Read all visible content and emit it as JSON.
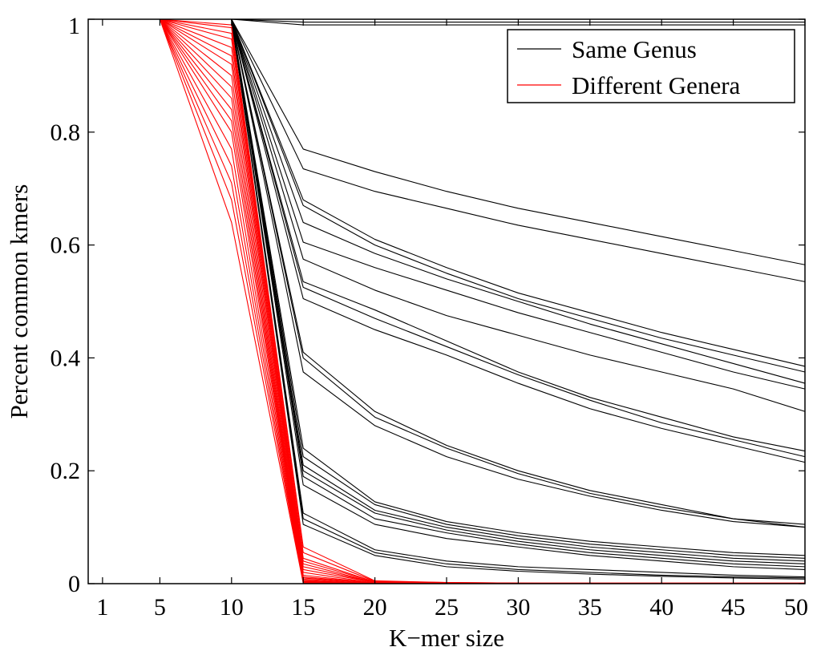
{
  "chart_data": {
    "type": "line",
    "title": "",
    "xlabel": "K−mer size",
    "ylabel": "Percent common kmers",
    "x": [
      1,
      5,
      10,
      15,
      20,
      25,
      30,
      35,
      40,
      45,
      50
    ],
    "xticks": [
      "1",
      "5",
      "10",
      "15",
      "20",
      "25",
      "30",
      "35",
      "40",
      "45",
      "50"
    ],
    "yticks": [
      "0",
      "0.2",
      "0.4",
      "0.6",
      "0.8",
      "1"
    ],
    "xlim": [
      0,
      50
    ],
    "ylim": [
      0,
      1
    ],
    "grid": false,
    "legend_position": "top-right",
    "series": [
      {
        "name": "Same Genus",
        "color": "#000000",
        "lines": [
          [
            1,
            1,
            1,
            0.995,
            0.995,
            0.995,
            0.995,
            0.995,
            0.995,
            0.995,
            0.995
          ],
          [
            1,
            1,
            1,
            0.99,
            0.99,
            0.99,
            0.99,
            0.99,
            0.99,
            0.99,
            0.99
          ],
          [
            1,
            1,
            1,
            0.77,
            0.73,
            0.695,
            0.665,
            0.64,
            0.615,
            0.59,
            0.565
          ],
          [
            1,
            1,
            1,
            0.735,
            0.695,
            0.665,
            0.635,
            0.61,
            0.585,
            0.56,
            0.535
          ],
          [
            1,
            1,
            1,
            0.68,
            0.61,
            0.56,
            0.515,
            0.48,
            0.445,
            0.415,
            0.385
          ],
          [
            1,
            1,
            1,
            0.67,
            0.6,
            0.55,
            0.505,
            0.47,
            0.435,
            0.405,
            0.375
          ],
          [
            1,
            1,
            1,
            0.64,
            0.585,
            0.54,
            0.5,
            0.46,
            0.425,
            0.39,
            0.355
          ],
          [
            1,
            1,
            1,
            0.605,
            0.56,
            0.52,
            0.48,
            0.445,
            0.41,
            0.375,
            0.345
          ],
          [
            1,
            1,
            1,
            0.575,
            0.52,
            0.475,
            0.44,
            0.405,
            0.375,
            0.345,
            0.305
          ],
          [
            1,
            1,
            1,
            0.535,
            0.485,
            0.43,
            0.375,
            0.33,
            0.295,
            0.26,
            0.235
          ],
          [
            1,
            1,
            1,
            0.525,
            0.47,
            0.42,
            0.37,
            0.325,
            0.285,
            0.255,
            0.225
          ],
          [
            1,
            1,
            1,
            0.505,
            0.45,
            0.405,
            0.355,
            0.31,
            0.275,
            0.245,
            0.215
          ],
          [
            1,
            1,
            1,
            0.41,
            0.305,
            0.245,
            0.2,
            0.165,
            0.14,
            0.115,
            0.105
          ],
          [
            1,
            1,
            1,
            0.4,
            0.295,
            0.24,
            0.195,
            0.16,
            0.135,
            0.115,
            0.1
          ],
          [
            1,
            1,
            1,
            0.375,
            0.28,
            0.225,
            0.185,
            0.155,
            0.13,
            0.11,
            0.1
          ],
          [
            1,
            1,
            1,
            0.24,
            0.145,
            0.11,
            0.09,
            0.075,
            0.065,
            0.055,
            0.05
          ],
          [
            1,
            1,
            1,
            0.225,
            0.14,
            0.105,
            0.085,
            0.07,
            0.06,
            0.05,
            0.045
          ],
          [
            1,
            1,
            1,
            0.21,
            0.13,
            0.1,
            0.08,
            0.065,
            0.055,
            0.045,
            0.04
          ],
          [
            1,
            1,
            1,
            0.2,
            0.125,
            0.095,
            0.075,
            0.06,
            0.05,
            0.04,
            0.035
          ],
          [
            1,
            1,
            1,
            0.19,
            0.115,
            0.09,
            0.07,
            0.055,
            0.045,
            0.035,
            0.03
          ],
          [
            1,
            1,
            1,
            0.175,
            0.105,
            0.08,
            0.065,
            0.05,
            0.04,
            0.03,
            0.025
          ],
          [
            1,
            1,
            1,
            0.125,
            0.06,
            0.04,
            0.03,
            0.025,
            0.02,
            0.015,
            0.012
          ],
          [
            1,
            1,
            1,
            0.115,
            0.055,
            0.035,
            0.025,
            0.02,
            0.015,
            0.012,
            0.01
          ],
          [
            1,
            1,
            1,
            0.105,
            0.05,
            0.03,
            0.022,
            0.017,
            0.013,
            0.01,
            0.008
          ]
        ]
      },
      {
        "name": "Different Genera",
        "color": "#ff0000",
        "lines": [
          [
            1,
            1,
            0.99,
            0.065,
            0.005,
            0.002,
            0.001,
            0.001,
            0.001,
            0.001,
            0.001
          ],
          [
            1,
            1,
            0.985,
            0.055,
            0.004,
            0.002,
            0.001,
            0.001,
            0.001,
            0.001,
            0.001
          ],
          [
            1,
            1,
            0.975,
            0.045,
            0.003,
            0.001,
            0.001,
            0,
            0,
            0,
            0
          ],
          [
            1,
            1,
            0.965,
            0.04,
            0.003,
            0.001,
            0,
            0,
            0,
            0,
            0
          ],
          [
            1,
            1,
            0.95,
            0.035,
            0.002,
            0.001,
            0,
            0,
            0,
            0,
            0
          ],
          [
            1,
            1,
            0.935,
            0.03,
            0.002,
            0.001,
            0,
            0,
            0,
            0,
            0
          ],
          [
            1,
            1,
            0.92,
            0.025,
            0.002,
            0,
            0,
            0,
            0,
            0,
            0
          ],
          [
            1,
            1,
            0.9,
            0.02,
            0.001,
            0,
            0,
            0,
            0,
            0,
            0
          ],
          [
            1,
            1,
            0.88,
            0.015,
            0.001,
            0,
            0,
            0,
            0,
            0,
            0
          ],
          [
            1,
            1,
            0.86,
            0.012,
            0.001,
            0,
            0,
            0,
            0,
            0,
            0
          ],
          [
            1,
            1,
            0.84,
            0.01,
            0.001,
            0,
            0,
            0,
            0,
            0,
            0
          ],
          [
            1,
            1,
            0.82,
            0.008,
            0,
            0,
            0,
            0,
            0,
            0,
            0
          ],
          [
            1,
            1,
            0.8,
            0.006,
            0,
            0,
            0,
            0,
            0,
            0,
            0
          ],
          [
            1,
            1,
            0.77,
            0.005,
            0,
            0,
            0,
            0,
            0,
            0,
            0
          ],
          [
            1,
            1,
            0.74,
            0.004,
            0,
            0,
            0,
            0,
            0,
            0,
            0
          ],
          [
            1,
            1,
            0.71,
            0.003,
            0,
            0,
            0,
            0,
            0,
            0,
            0
          ],
          [
            1,
            1,
            0.68,
            0.002,
            0,
            0,
            0,
            0,
            0,
            0,
            0
          ],
          [
            1,
            1,
            0.64,
            0.001,
            0,
            0,
            0,
            0,
            0,
            0,
            0
          ]
        ]
      }
    ]
  }
}
